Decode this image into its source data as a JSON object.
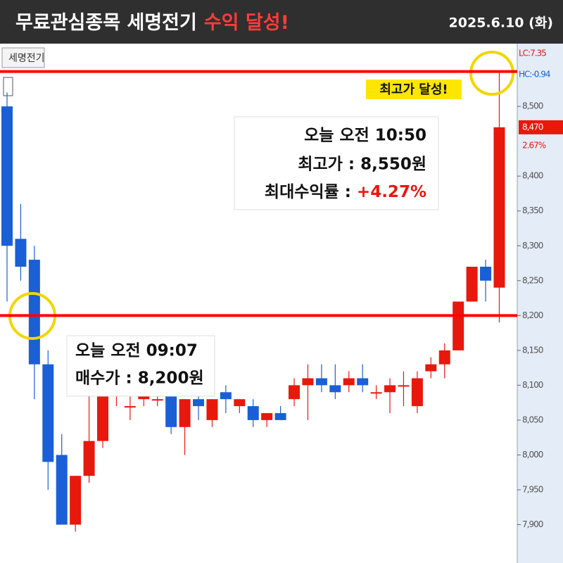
{
  "header": {
    "title": "무료관심종목 세명전기",
    "title_highlight": "수익 달성!",
    "date": "2025.6.10 (화)"
  },
  "chart_data": {
    "type": "candlestick",
    "stock_name": "세명전기",
    "up_color": "#e8180c",
    "down_color": "#1a5fd6",
    "open": [
      8500,
      8310,
      8280,
      8130,
      8000,
      7900,
      7970,
      8020,
      8090,
      8070,
      8080,
      8080,
      8100,
      8040,
      8080,
      8050,
      8090,
      8070,
      8070,
      8050,
      8060,
      8080,
      8100,
      8110,
      8100,
      8100,
      8110,
      8090,
      8090,
      8100,
      8070,
      8120,
      8130,
      8150,
      8220,
      8270,
      8240
    ],
    "high": [
      8520,
      8360,
      8300,
      8150,
      8030,
      7970,
      8090,
      8120,
      8110,
      8090,
      8100,
      8090,
      8110,
      8080,
      8090,
      8080,
      8100,
      8080,
      8080,
      8060,
      8070,
      8110,
      8130,
      8130,
      8130,
      8120,
      8130,
      8100,
      8110,
      8120,
      8120,
      8140,
      8160,
      8220,
      8270,
      8280,
      8550
    ],
    "low": [
      8220,
      8250,
      8080,
      7950,
      7900,
      7890,
      7960,
      8010,
      8070,
      8050,
      8070,
      8070,
      8030,
      8000,
      8050,
      8040,
      8060,
      8060,
      8040,
      8040,
      8050,
      8070,
      8050,
      8090,
      8080,
      8090,
      8090,
      8080,
      8060,
      8070,
      8060,
      8110,
      8110,
      8150,
      8220,
      8220,
      8190
    ],
    "close": [
      8300,
      8270,
      8130,
      7990,
      7900,
      7970,
      8020,
      8100,
      8100,
      8070,
      8090,
      8080,
      8040,
      8080,
      8070,
      8080,
      8080,
      8080,
      8050,
      8060,
      8050,
      8100,
      8110,
      8100,
      8090,
      8110,
      8100,
      8090,
      8100,
      8100,
      8110,
      8130,
      8150,
      8220,
      8270,
      8250,
      8470
    ],
    "ylim": [
      7845,
      8590
    ],
    "yticks": [
      {
        "value": 7900,
        "label": "7,900"
      },
      {
        "value": 7950,
        "label": "7,950"
      },
      {
        "value": 8000,
        "label": "8,000"
      },
      {
        "value": 8050,
        "label": "8,050"
      },
      {
        "value": 8100,
        "label": "8,100"
      },
      {
        "value": 8150,
        "label": "8,150"
      },
      {
        "value": 8200,
        "label": "8,200"
      },
      {
        "value": 8250,
        "label": "8,250"
      },
      {
        "value": 8300,
        "label": "8,300"
      },
      {
        "value": 8350,
        "label": "8,350"
      },
      {
        "value": 8400,
        "label": "8,400"
      },
      {
        "value": 8500,
        "label": "8,500"
      }
    ],
    "hlines": [
      8550,
      8200
    ],
    "axis_notes": [
      "LC:7.35",
      "HC:-0.94"
    ],
    "current_price": {
      "value": 8470,
      "label": "8,470",
      "change": "2.67%"
    },
    "badge": "최고가 달성!",
    "annotation_high": {
      "time": "오늘 오전 10:50",
      "price": "최고가 : 8,550원",
      "return_label": "최대수익률 : ",
      "return_value": "+4.27%"
    },
    "annotation_buy": {
      "time": "오늘 오전 09:07",
      "price": "매수가 : 8,200원"
    }
  }
}
